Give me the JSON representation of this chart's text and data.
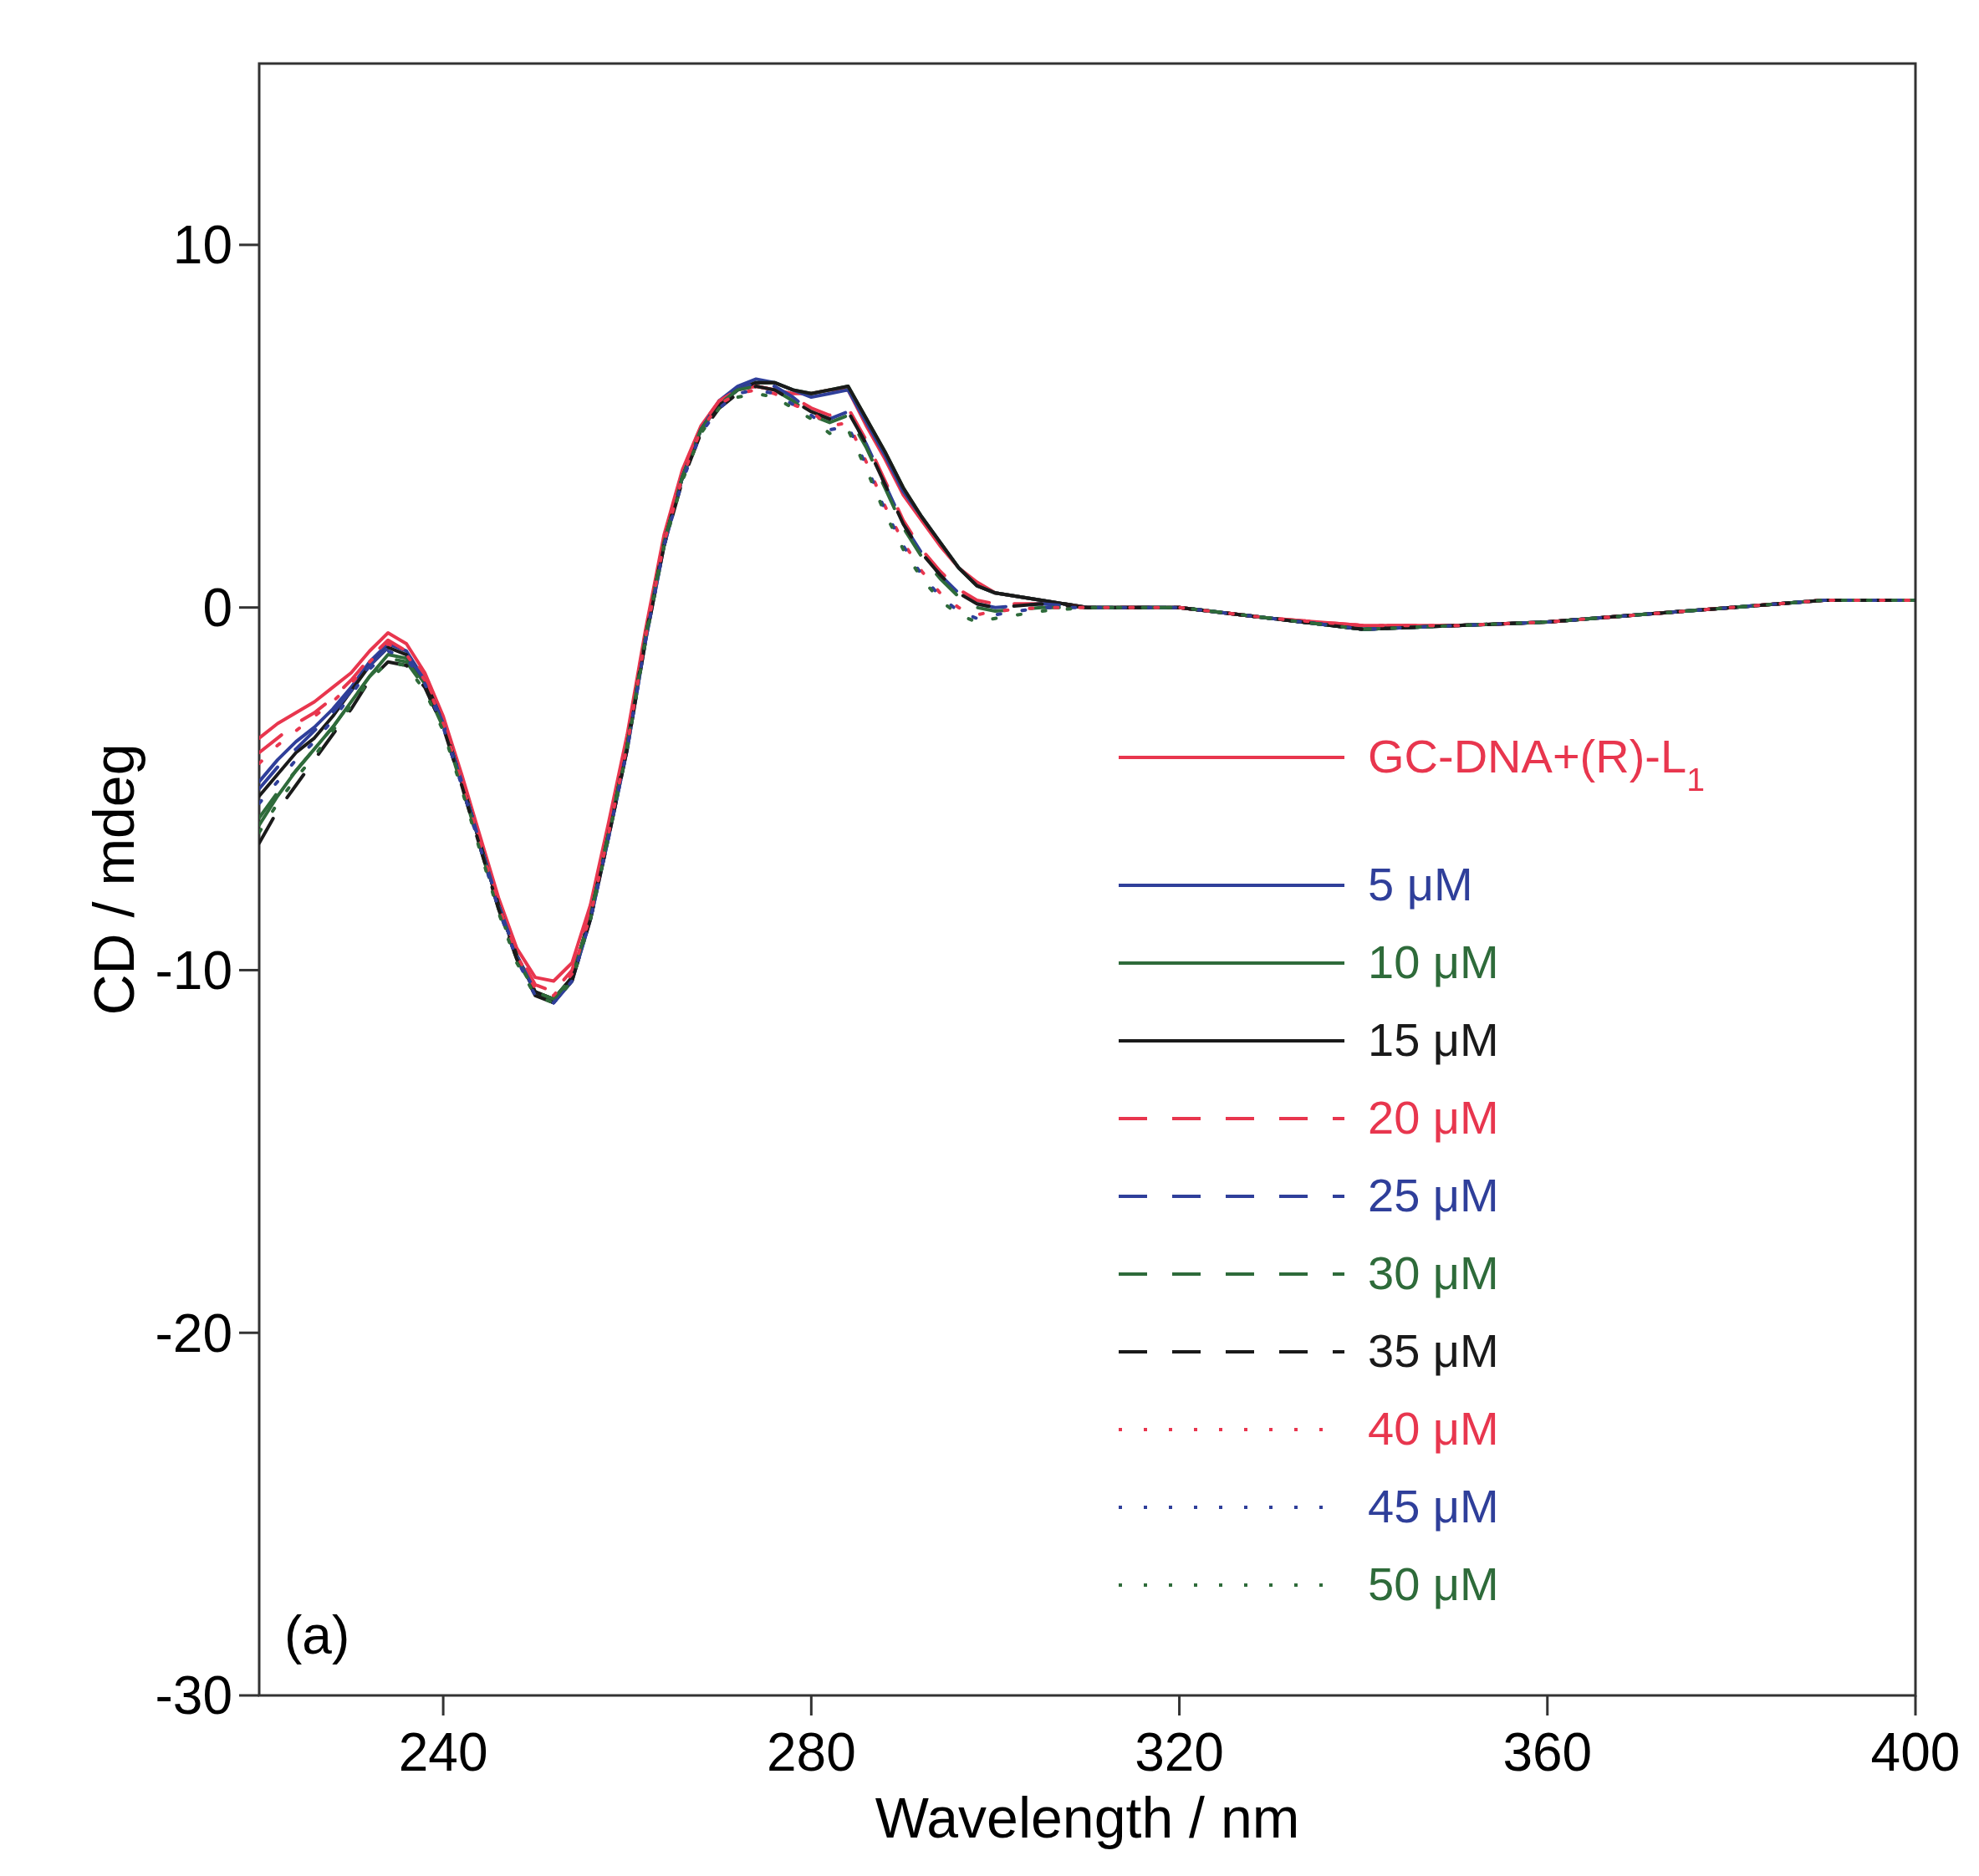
{
  "chart_data": {
    "type": "line",
    "xlabel": "Wavelength / nm",
    "ylabel": "CD / mdeg",
    "xlim": [
      220,
      400
    ],
    "ylim": [
      -30,
      15
    ],
    "xticks": [
      240,
      280,
      320,
      360,
      400
    ],
    "yticks": [
      -30,
      -20,
      -10,
      0,
      10
    ],
    "legend": "bottom right",
    "annotations": [
      "(a)"
    ],
    "x": [
      220,
      222,
      224,
      226,
      228,
      230,
      232,
      234,
      236,
      238,
      240,
      242,
      244,
      246,
      248,
      250,
      252,
      254,
      256,
      258,
      260,
      262,
      264,
      266,
      268,
      270,
      272,
      274,
      276,
      278,
      280,
      282,
      284,
      286,
      288,
      290,
      292,
      294,
      296,
      298,
      300,
      305,
      310,
      320,
      330,
      340,
      350,
      360,
      370,
      380,
      390,
      400
    ],
    "series": [
      {
        "name": "GC-DNA+(R)-L$_{1}$",
        "color": "#e8364e",
        "line_style": "solid",
        "values": [
          -3.6,
          -3.2,
          -2.9,
          -2.6,
          -2.2,
          -1.8,
          -1.2,
          -0.7,
          -1.0,
          -1.8,
          -3.0,
          -4.6,
          -6.3,
          -8.0,
          -9.4,
          -10.2,
          -10.3,
          -9.8,
          -8.2,
          -5.9,
          -3.5,
          -0.6,
          2.0,
          3.8,
          5.0,
          5.7,
          6.0,
          6.1,
          6.0,
          5.9,
          5.9,
          6.0,
          6.0,
          5.0,
          4.1,
          3.1,
          2.4,
          1.7,
          1.1,
          0.7,
          0.4,
          0.2,
          0.0,
          0.0,
          -0.3,
          -0.5,
          -0.5,
          -0.4,
          -0.2,
          0.0,
          0.2,
          0.2
        ]
      },
      {
        "name": "5 μM",
        "color": "#2f3f9a",
        "line_style": "solid",
        "values": [
          -4.8,
          -4.2,
          -3.7,
          -3.3,
          -2.8,
          -2.2,
          -1.5,
          -1.0,
          -1.2,
          -2.0,
          -3.2,
          -4.8,
          -6.5,
          -8.2,
          -9.6,
          -10.6,
          -10.9,
          -10.3,
          -8.6,
          -6.3,
          -3.9,
          -0.9,
          1.7,
          3.6,
          4.9,
          5.7,
          6.1,
          6.3,
          6.2,
          6.0,
          5.8,
          5.9,
          6.0,
          5.1,
          4.2,
          3.2,
          2.5,
          1.8,
          1.1,
          0.6,
          0.4,
          0.2,
          0.0,
          0.0,
          -0.3,
          -0.6,
          -0.5,
          -0.4,
          -0.2,
          0.0,
          0.2,
          0.2
        ]
      },
      {
        "name": "10 μM",
        "color": "#2e6b3a",
        "line_style": "solid",
        "values": [
          -6.0,
          -5.2,
          -4.5,
          -3.9,
          -3.3,
          -2.6,
          -1.9,
          -1.3,
          -1.4,
          -2.1,
          -3.2,
          -4.8,
          -6.5,
          -8.2,
          -9.6,
          -10.6,
          -10.8,
          -10.2,
          -8.5,
          -6.2,
          -3.8,
          -0.8,
          1.8,
          3.6,
          4.9,
          5.6,
          6.0,
          6.2,
          6.2,
          6.0,
          5.9,
          6.0,
          6.1,
          5.2,
          4.3,
          3.3,
          2.5,
          1.8,
          1.1,
          0.6,
          0.4,
          0.2,
          0.0,
          0.0,
          -0.3,
          -0.6,
          -0.5,
          -0.4,
          -0.2,
          0.0,
          0.2,
          0.2
        ]
      },
      {
        "name": "15 μM",
        "color": "#1a1a1a",
        "line_style": "solid",
        "values": [
          -5.2,
          -4.6,
          -4.0,
          -3.6,
          -3.0,
          -2.3,
          -1.6,
          -1.1,
          -1.3,
          -2.0,
          -3.2,
          -4.8,
          -6.5,
          -8.2,
          -9.6,
          -10.6,
          -10.8,
          -10.2,
          -8.5,
          -6.2,
          -3.8,
          -0.8,
          1.8,
          3.6,
          4.9,
          5.6,
          6.0,
          6.2,
          6.2,
          6.0,
          5.9,
          6.0,
          6.1,
          5.2,
          4.3,
          3.3,
          2.5,
          1.8,
          1.1,
          0.6,
          0.4,
          0.2,
          0.0,
          0.0,
          -0.3,
          -0.6,
          -0.5,
          -0.4,
          -0.2,
          0.0,
          0.2,
          0.2
        ]
      },
      {
        "name": "20 μM",
        "color": "#e8364e",
        "line_style": "dashed",
        "values": [
          -4.0,
          -3.6,
          -3.2,
          -2.9,
          -2.5,
          -2.0,
          -1.4,
          -0.9,
          -1.2,
          -1.9,
          -3.1,
          -4.7,
          -6.4,
          -8.1,
          -9.5,
          -10.4,
          -10.6,
          -10.0,
          -8.4,
          -6.1,
          -3.7,
          -0.7,
          1.9,
          3.7,
          5.0,
          5.7,
          6.0,
          6.1,
          6.0,
          5.8,
          5.5,
          5.3,
          5.5,
          4.6,
          3.5,
          2.4,
          1.6,
          1.0,
          0.5,
          0.2,
          0.1,
          0.1,
          0.0,
          0.0,
          -0.3,
          -0.5,
          -0.5,
          -0.4,
          -0.2,
          0.0,
          0.2,
          0.2
        ]
      },
      {
        "name": "25 μM",
        "color": "#2f3f9a",
        "line_style": "dashed",
        "values": [
          -5.0,
          -4.4,
          -3.9,
          -3.4,
          -2.9,
          -2.3,
          -1.6,
          -1.1,
          -1.3,
          -2.0,
          -3.2,
          -4.8,
          -6.5,
          -8.2,
          -9.6,
          -10.6,
          -10.9,
          -10.3,
          -8.6,
          -6.3,
          -3.9,
          -0.9,
          1.7,
          3.6,
          4.9,
          5.6,
          6.0,
          6.2,
          6.1,
          5.8,
          5.4,
          5.2,
          5.4,
          4.5,
          3.4,
          2.3,
          1.5,
          0.9,
          0.4,
          0.1,
          0.0,
          0.1,
          0.0,
          0.0,
          -0.3,
          -0.6,
          -0.5,
          -0.4,
          -0.2,
          0.0,
          0.2,
          0.2
        ]
      },
      {
        "name": "30 μM",
        "color": "#2e6b3a",
        "line_style": "dashed",
        "values": [
          -5.8,
          -5.1,
          -4.5,
          -3.9,
          -3.3,
          -2.6,
          -1.9,
          -1.4,
          -1.5,
          -2.2,
          -3.3,
          -4.9,
          -6.6,
          -8.3,
          -9.7,
          -10.6,
          -10.8,
          -10.2,
          -8.5,
          -6.2,
          -3.8,
          -0.8,
          1.8,
          3.6,
          4.9,
          5.6,
          6.0,
          6.1,
          6.0,
          5.7,
          5.3,
          5.1,
          5.3,
          4.4,
          3.3,
          2.2,
          1.4,
          0.8,
          0.3,
          0.0,
          -0.1,
          0.0,
          0.0,
          0.0,
          -0.3,
          -0.6,
          -0.5,
          -0.4,
          -0.2,
          0.0,
          0.2,
          0.2
        ]
      },
      {
        "name": "35 μM",
        "color": "#1a1a1a",
        "line_style": "dashed",
        "values": [
          -6.5,
          -5.6,
          -4.9,
          -4.2,
          -3.5,
          -2.8,
          -2.0,
          -1.5,
          -1.6,
          -2.2,
          -3.3,
          -4.9,
          -6.6,
          -8.3,
          -9.7,
          -10.7,
          -10.9,
          -10.3,
          -8.6,
          -6.3,
          -3.9,
          -0.9,
          1.7,
          3.5,
          4.8,
          5.5,
          5.9,
          6.1,
          6.0,
          5.7,
          5.4,
          5.2,
          5.4,
          4.5,
          3.4,
          2.3,
          1.5,
          0.9,
          0.4,
          0.1,
          0.0,
          0.1,
          0.0,
          0.0,
          -0.3,
          -0.6,
          -0.5,
          -0.4,
          -0.2,
          0.0,
          0.2,
          0.2
        ]
      },
      {
        "name": "40 μM",
        "color": "#e8364e",
        "line_style": "dotted",
        "values": [
          -4.3,
          -3.8,
          -3.4,
          -3.0,
          -2.6,
          -2.1,
          -1.5,
          -1.0,
          -1.3,
          -2.0,
          -3.2,
          -4.8,
          -6.5,
          -8.2,
          -9.6,
          -10.5,
          -10.7,
          -10.1,
          -8.5,
          -6.2,
          -3.8,
          -0.8,
          1.8,
          3.6,
          4.9,
          5.6,
          5.9,
          6.0,
          5.9,
          5.6,
          5.4,
          5.0,
          5.1,
          4.0,
          2.8,
          1.8,
          1.0,
          0.4,
          0.0,
          -0.2,
          -0.1,
          0.0,
          0.0,
          0.0,
          -0.3,
          -0.5,
          -0.5,
          -0.4,
          -0.2,
          0.0,
          0.2,
          0.2
        ]
      },
      {
        "name": "45 μM",
        "color": "#2f3f9a",
        "line_style": "dotted",
        "values": [
          -5.4,
          -4.8,
          -4.2,
          -3.7,
          -3.1,
          -2.4,
          -1.7,
          -1.2,
          -1.4,
          -2.1,
          -3.3,
          -4.9,
          -6.6,
          -8.3,
          -9.7,
          -10.7,
          -10.9,
          -10.3,
          -8.6,
          -6.3,
          -3.9,
          -0.9,
          1.7,
          3.5,
          4.8,
          5.5,
          5.9,
          6.0,
          5.9,
          5.6,
          5.3,
          4.9,
          5.0,
          3.9,
          2.7,
          1.7,
          0.9,
          0.3,
          -0.1,
          -0.3,
          -0.2,
          0.0,
          0.0,
          0.0,
          -0.3,
          -0.6,
          -0.5,
          -0.4,
          -0.2,
          0.0,
          0.2,
          0.2
        ]
      },
      {
        "name": "50 μM",
        "color": "#2e6b3a",
        "line_style": "dotted",
        "values": [
          -6.2,
          -5.4,
          -4.7,
          -4.1,
          -3.4,
          -2.7,
          -2.0,
          -1.5,
          -1.6,
          -2.3,
          -3.4,
          -5.0,
          -6.7,
          -8.4,
          -9.8,
          -10.7,
          -10.9,
          -10.3,
          -8.6,
          -6.3,
          -3.9,
          -0.9,
          1.7,
          3.5,
          4.8,
          5.5,
          5.8,
          5.9,
          5.8,
          5.5,
          5.2,
          4.8,
          4.9,
          3.8,
          2.6,
          1.6,
          0.8,
          0.2,
          -0.2,
          -0.4,
          -0.3,
          -0.1,
          0.0,
          0.0,
          -0.3,
          -0.6,
          -0.5,
          -0.4,
          -0.2,
          0.0,
          0.2,
          0.2
        ]
      }
    ]
  }
}
